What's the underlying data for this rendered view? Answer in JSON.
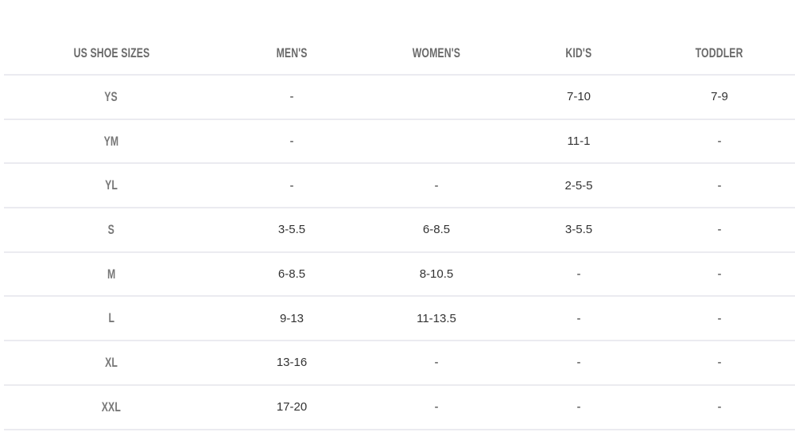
{
  "headers": [
    "US SHOE SIZES",
    "MEN'S",
    "WOMEN'S",
    "KID'S",
    "TODDLER"
  ],
  "rows": [
    [
      "YS",
      "-",
      "",
      "7-10",
      "7-9"
    ],
    [
      "YM",
      "-",
      "",
      "11-1",
      "-"
    ],
    [
      "YL",
      "-",
      "-",
      "2-5-5",
      "-"
    ],
    [
      "S",
      "3-5.5",
      "6-8.5",
      "3-5.5",
      "-"
    ],
    [
      "M",
      "6-8.5",
      "8-10.5",
      "-",
      "-"
    ],
    [
      "L",
      "9-13",
      "11-13.5",
      "-",
      "-"
    ],
    [
      "XL",
      "13-16",
      "-",
      "-",
      "-"
    ],
    [
      "XXL",
      "17-20",
      "-",
      "-",
      "-"
    ]
  ]
}
